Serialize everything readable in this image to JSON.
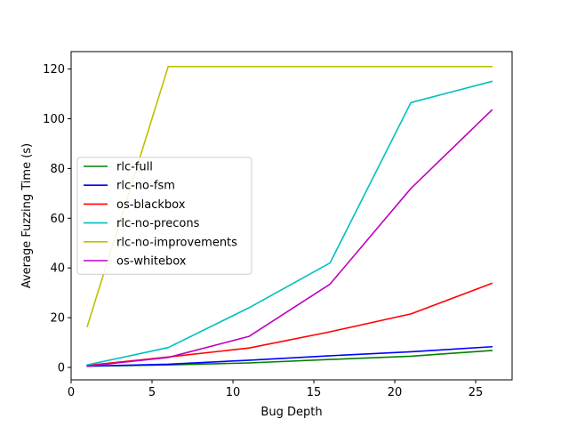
{
  "chart_data": {
    "type": "line",
    "title": "",
    "xlabel": "Bug Depth",
    "ylabel": "Average Fuzzing Time (s)",
    "xlim": [
      0,
      27.25
    ],
    "ylim": [
      -5,
      127
    ],
    "xticks": [
      0,
      5,
      10,
      15,
      20,
      25
    ],
    "yticks": [
      0,
      20,
      40,
      60,
      80,
      100,
      120
    ],
    "grid": false,
    "legend_placement": "center-left",
    "x": [
      1,
      6,
      11,
      16,
      21,
      26
    ],
    "series": [
      {
        "name": "rlc-full",
        "color": "#008000",
        "values": [
          0.5,
          1.0,
          1.8,
          3.2,
          4.5,
          6.8
        ]
      },
      {
        "name": "rlc-no-fsm",
        "color": "#0000ff",
        "values": [
          0.5,
          1.3,
          2.9,
          4.7,
          6.3,
          8.3
        ]
      },
      {
        "name": "os-blackbox",
        "color": "#ff0000",
        "values": [
          0.8,
          4.2,
          7.8,
          14.3,
          21.5,
          33.8
        ]
      },
      {
        "name": "rlc-no-precons",
        "color": "#00bfbf",
        "values": [
          1.0,
          8.0,
          24.0,
          42.0,
          106.5,
          115.0
        ]
      },
      {
        "name": "rlc-no-improvements",
        "color": "#bfbf00",
        "values": [
          16.5,
          121.0,
          121.0,
          121.0,
          121.0,
          121.0
        ]
      },
      {
        "name": "os-whitebox",
        "color": "#bf00bf",
        "values": [
          0.5,
          4.0,
          12.5,
          33.5,
          72.0,
          103.5
        ]
      }
    ]
  }
}
